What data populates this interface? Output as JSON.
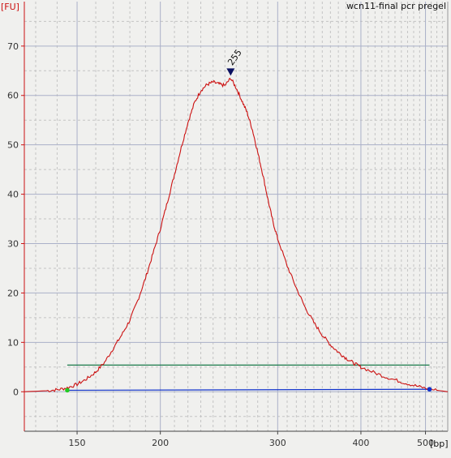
{
  "chart_data": {
    "type": "line",
    "title": "wcn11-final pcr pregel",
    "xlabel": "[bp]",
    "ylabel": "[FU]",
    "ylim": [
      -8,
      79
    ],
    "grid": true,
    "x_tick_labels": [
      "150",
      "200",
      "300",
      "400",
      "500"
    ],
    "y_tick_labels": [
      "0",
      "10",
      "20",
      "30",
      "40",
      "50",
      "60",
      "70"
    ],
    "y_ticks": [
      0,
      10,
      20,
      30,
      40,
      50,
      60,
      70
    ],
    "x_scale": "log",
    "xlim": [
      125,
      540
    ],
    "x_ticks": [
      150,
      200,
      300,
      400,
      500
    ],
    "peak": {
      "label": "255",
      "x": 255,
      "y": 63.5
    },
    "series": [
      {
        "color": "#cc1111",
        "x": [
          125,
          135,
          140,
          145,
          150,
          155,
          160,
          165,
          170,
          175,
          180,
          185,
          190,
          195,
          200,
          205,
          210,
          215,
          220,
          225,
          230,
          235,
          240,
          245,
          250,
          255,
          260,
          265,
          270,
          275,
          280,
          285,
          290,
          295,
          300,
          310,
          320,
          330,
          340,
          350,
          360,
          370,
          380,
          390,
          400,
          420,
          440,
          460,
          480,
          500,
          520,
          540
        ],
        "y": [
          0,
          0.2,
          0.4,
          0.8,
          1.5,
          2.6,
          4.0,
          6.0,
          8.8,
          11.5,
          14.5,
          18.5,
          23,
          28,
          33,
          38.5,
          44,
          49.5,
          54.5,
          58.5,
          61,
          62.2,
          62.7,
          62.3,
          62,
          63.5,
          61.5,
          59,
          56.5,
          53,
          48.5,
          44,
          39,
          34.5,
          31,
          25.5,
          21,
          17,
          14,
          11.5,
          9.5,
          8,
          6.8,
          5.8,
          5,
          3.8,
          2.8,
          2,
          1.3,
          0.7,
          0.3,
          0
        ]
      }
    ],
    "baselines": [
      {
        "name": "upper",
        "color": "#1a7a4a",
        "x": [
          145,
          507
        ],
        "y": [
          5.4,
          5.4
        ]
      },
      {
        "name": "lower",
        "color": "#1133cc",
        "x": [
          145,
          507
        ],
        "y": [
          0.3,
          0.5
        ]
      }
    ],
    "markers": [
      {
        "color": "#22cc22",
        "x": 145,
        "y": 0.3
      },
      {
        "color": "#1133cc",
        "x": 507,
        "y": 0.5
      }
    ]
  }
}
